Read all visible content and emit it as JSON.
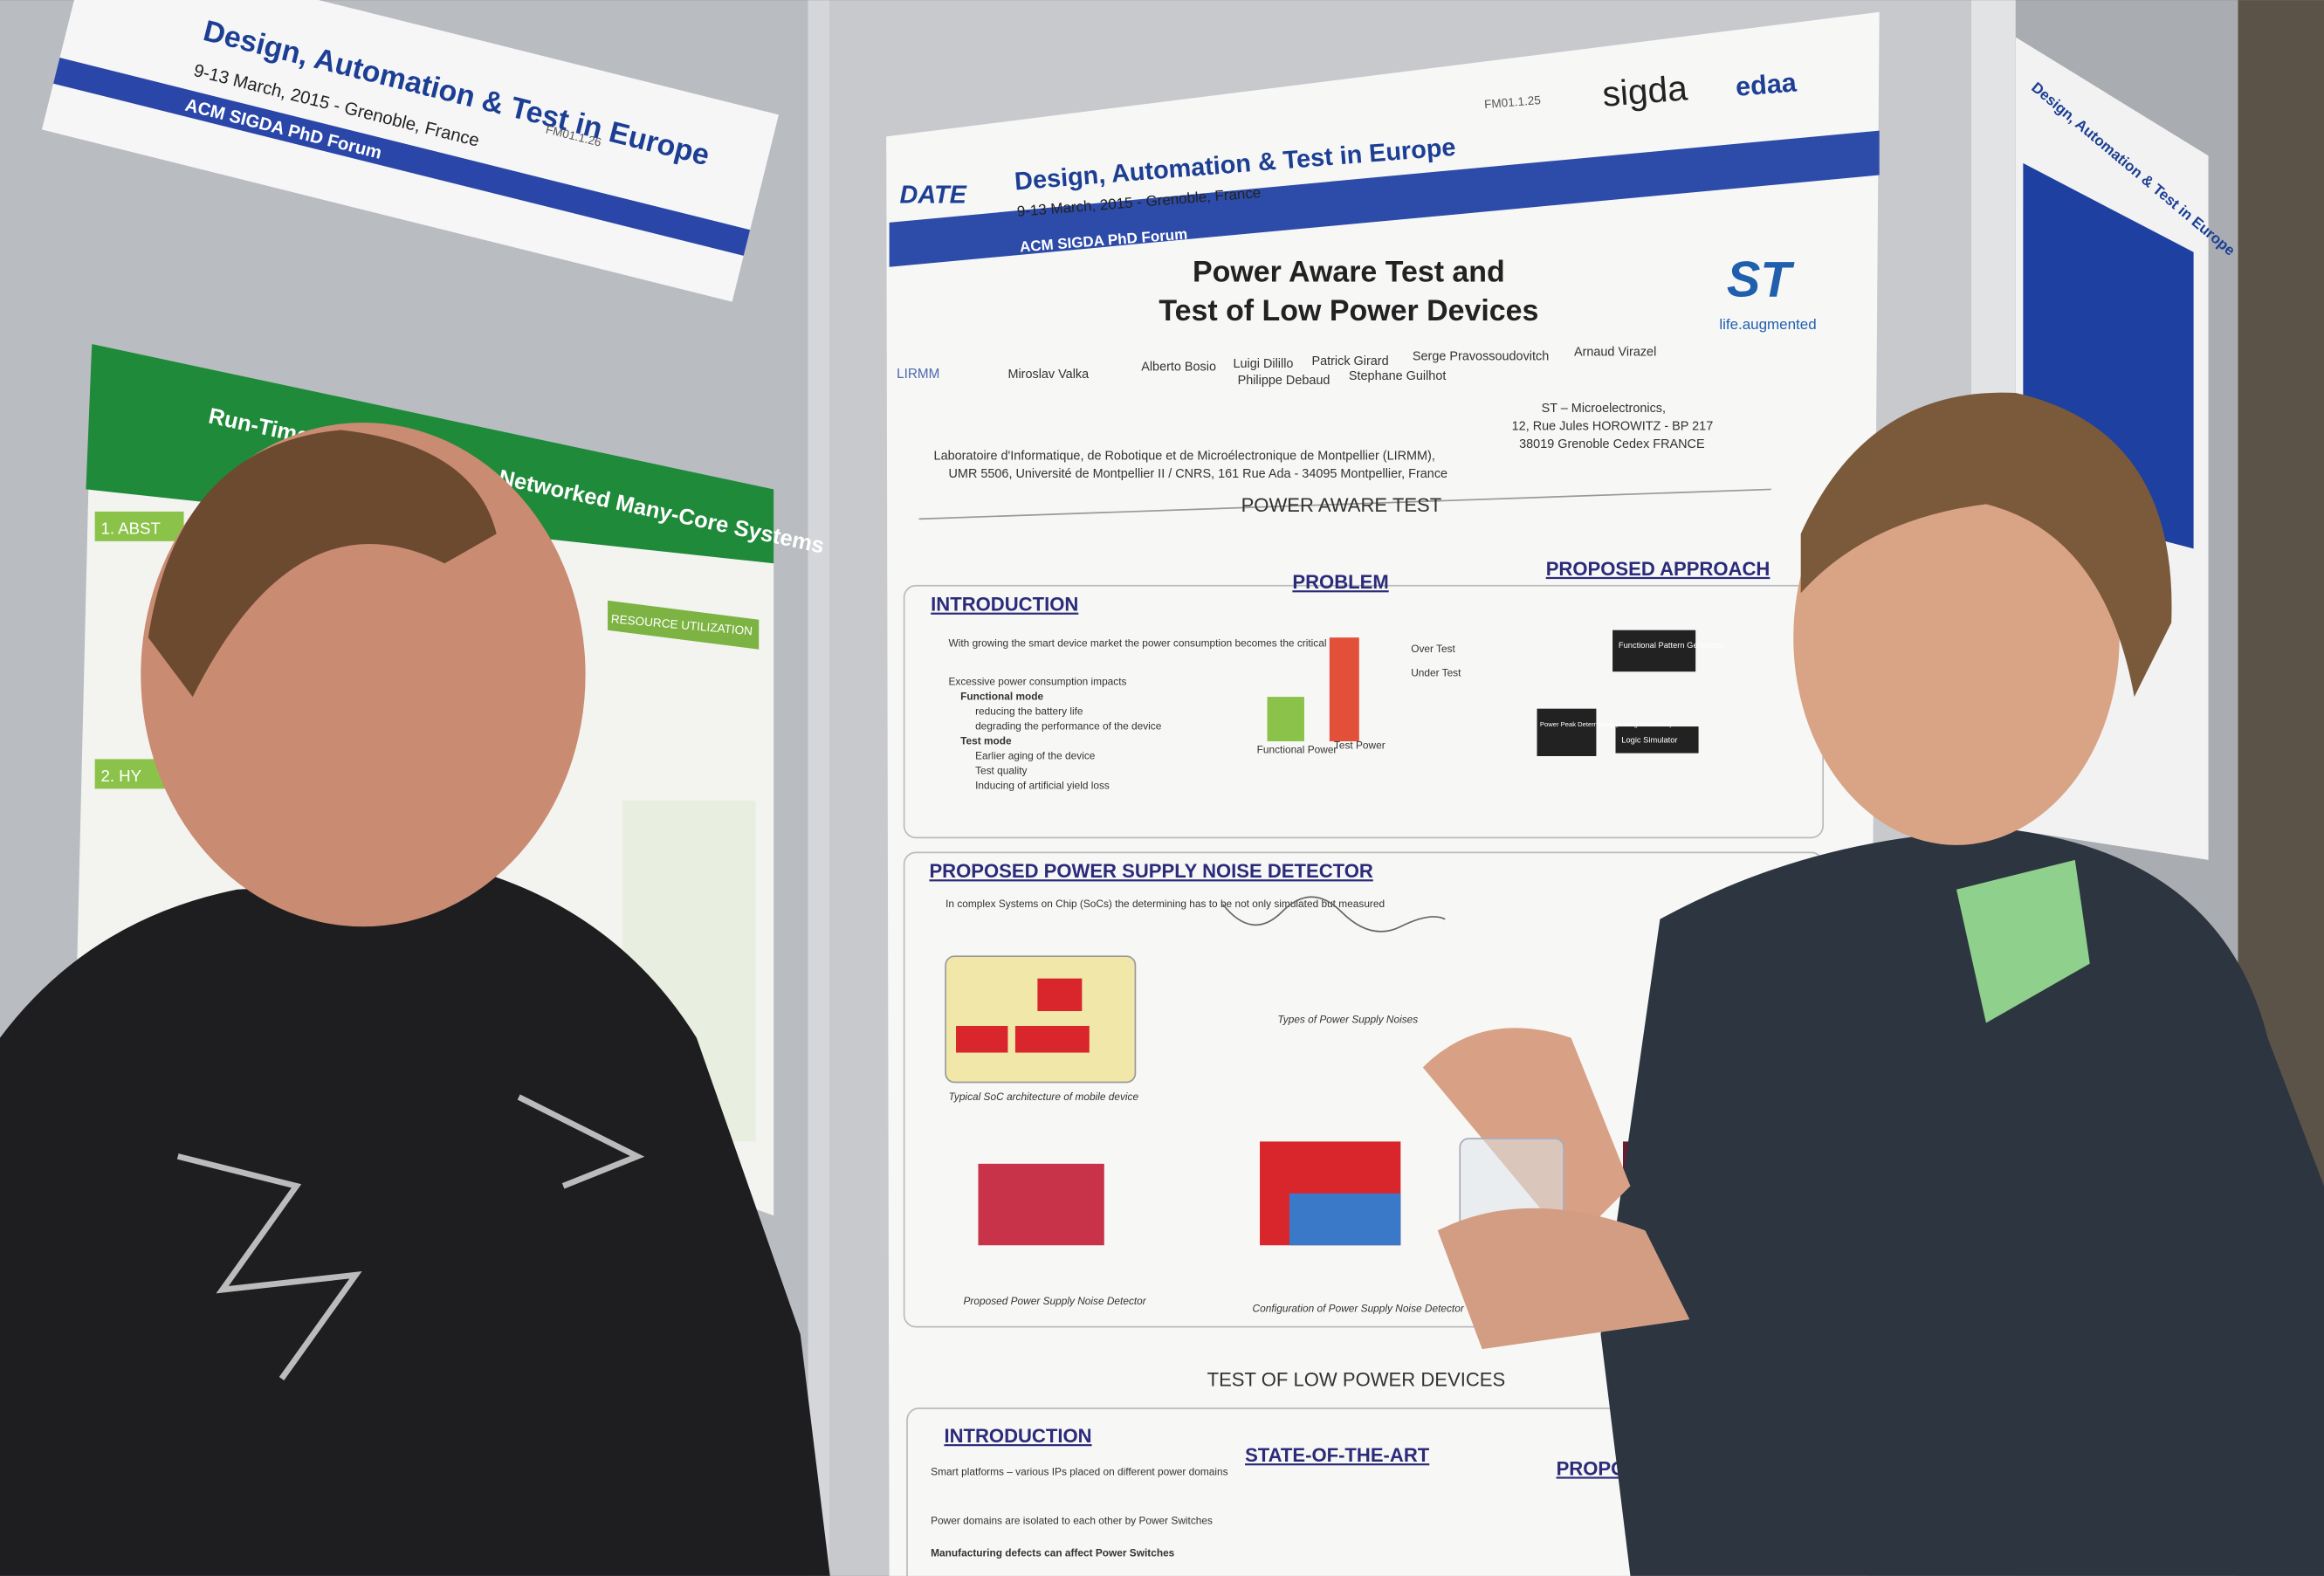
{
  "left_poster": {
    "header": {
      "title": "Design, Automation & Test in Europe",
      "dates": "9-13 March, 2015 - Grenoble, France",
      "forum": "ACM SIGDA PhD Forum",
      "code": "FM01.1.26"
    },
    "title_fragments": [
      "Run-Time",
      "Networked Many-Core Systems"
    ],
    "sections": [
      "1. ABST",
      "2. HY",
      "RESOURCE UTILIZATION"
    ]
  },
  "center_poster": {
    "header": {
      "logo": "DATE",
      "title": "Design, Automation & Test in Europe",
      "dates": "9-13 March, 2015 - Grenoble, France",
      "forum": "ACM SIGDA PhD Forum",
      "code": "FM01.1.25",
      "sponsor_1": "sigda",
      "sponsor_2": "edaa"
    },
    "title_lines": [
      "Power Aware Test and",
      "Test of Low Power Devices"
    ],
    "lab": "LIRMM",
    "company_tagline": "life.augmented",
    "authors": [
      "Miroslav Valka",
      "Alberto Bosio",
      "Luigi Dilillo",
      "Patrick Girard",
      "Serge Pravossoudovitch",
      "Arnaud Virazel",
      "Philippe Debaud",
      "Stephane Guilhot"
    ],
    "affiliations": [
      "Laboratoire d'Informatique, de Robotique et de Microélectronique de Montpellier (LIRMM),",
      "UMR 5506, Université de Montpellier II / CNRS, 161 Rue Ada - 34095 Montpellier, France",
      "ST – Microelectronics,",
      "12, Rue Jules HOROWITZ - BP 217",
      "38019 Grenoble Cedex FRANCE"
    ],
    "part_1": {
      "heading": "POWER AWARE TEST",
      "sections": [
        "INTRODUCTION",
        "PROBLEM",
        "PROPOSED APPROACH",
        "PROPOSED POWER SUPPLY NOISE DETECTOR"
      ],
      "bullets": [
        "With growing the smart device market the power consumption becomes the critical issue",
        "Excessive power consumption impacts",
        "Functional mode",
        "reducing the battery life",
        "degrading the performance of the device",
        "Test mode",
        "Earlier aging of the device",
        "Test quality",
        "Inducing of artificial yield loss",
        "In complex Systems on Chip (SoCs) the determining has to be not only simulated but measured"
      ],
      "problem_labels": [
        "Functional Power",
        "Test Power",
        "Over Test",
        "Under Test"
      ],
      "approach_labels": [
        "Functional Pattern Generator",
        "Logic Simulator",
        "Power Peak Determining (analog simulation)"
      ],
      "captions": [
        "Typical SoC architecture of mobile device",
        "Types of Power Supply Noises",
        "Proposed Power Supply Noise Detector",
        "Configuration of Power Supply Noise Detector"
      ]
    },
    "part_2": {
      "heading": "TEST OF LOW POWER DEVICES",
      "sections": [
        "INTRODUCTION",
        "STATE-OF-THE-ART",
        "PROPOSED"
      ],
      "bullets": [
        "Smart platforms – various IPs placed on different power domains",
        "Power domains are isolated to each other by Power Switches",
        "Manufacturing defects can affect Power Switches"
      ]
    }
  },
  "right_poster": {
    "header": {
      "title": "Design, Automation & Test in Europe"
    }
  }
}
